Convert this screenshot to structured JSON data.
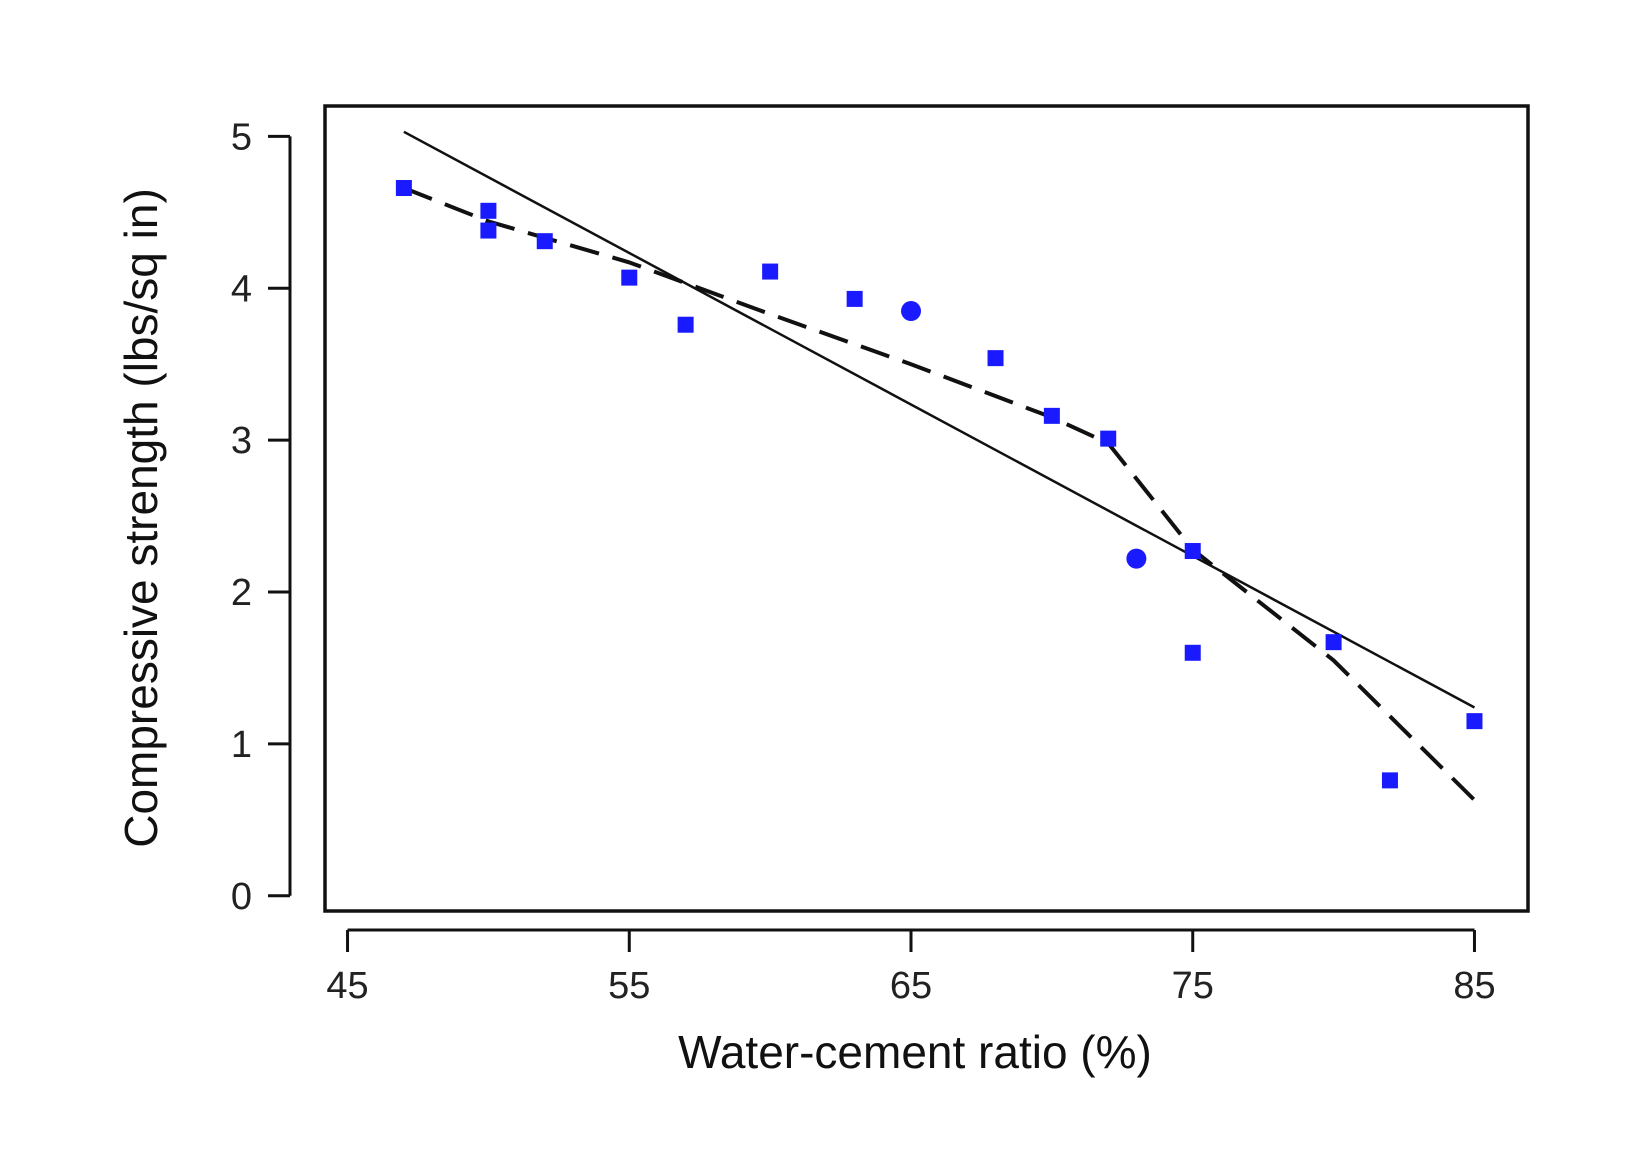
{
  "chart_data": {
    "type": "scatter",
    "xlabel": "Water-cement ratio (%)",
    "ylabel": "Compressive strength (lbs/sq in)",
    "xlim": [
      44.2,
      86.9
    ],
    "ylim": [
      -0.1,
      5.2
    ],
    "xticks": [
      45,
      55,
      65,
      75,
      85
    ],
    "yticks": [
      0,
      1,
      2,
      3,
      4,
      5
    ],
    "grid": false,
    "legend": "none",
    "marker_color": "#1a1aff",
    "line_color": "#111111",
    "series": [
      {
        "kind": "points",
        "marker": "square",
        "x": [
          47,
          50,
          50,
          52,
          55,
          57,
          60,
          63,
          68,
          70,
          72,
          75,
          75,
          80,
          82,
          85
        ],
        "y": [
          4.66,
          4.51,
          4.38,
          4.31,
          4.07,
          3.76,
          4.11,
          3.93,
          3.54,
          3.16,
          3.01,
          2.27,
          1.6,
          1.67,
          0.76,
          1.15
        ]
      },
      {
        "kind": "points",
        "marker": "circle",
        "x": [
          65,
          73
        ],
        "y": [
          3.85,
          2.22
        ]
      },
      {
        "kind": "line",
        "style": "solid",
        "x": [
          47,
          85
        ],
        "y": [
          5.03,
          1.24
        ]
      },
      {
        "kind": "line",
        "style": "dashed",
        "x": [
          47,
          50,
          55,
          60,
          65,
          70,
          72,
          75,
          80,
          85
        ],
        "y": [
          4.66,
          4.44,
          4.17,
          3.83,
          3.5,
          3.15,
          2.98,
          2.28,
          1.55,
          0.63
        ]
      }
    ]
  }
}
